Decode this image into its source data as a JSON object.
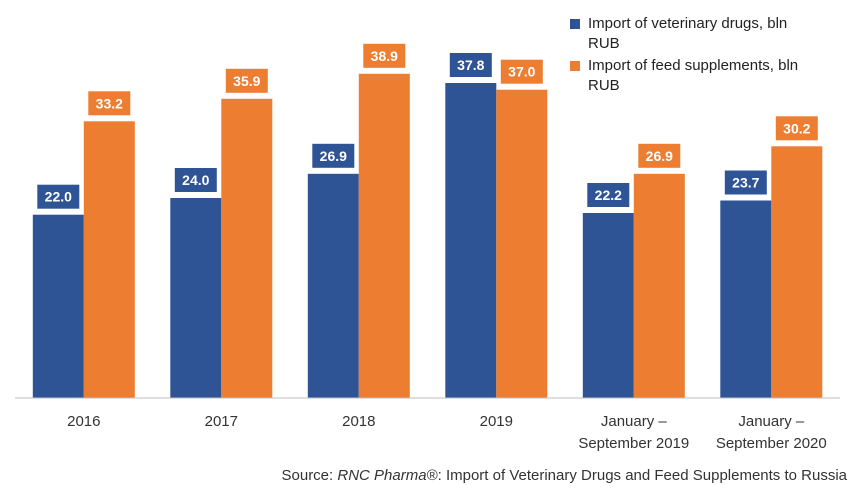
{
  "chart_data": {
    "type": "bar",
    "title": "",
    "xlabel": "",
    "ylabel": "",
    "ylim": [
      0,
      42
    ],
    "grid": false,
    "legend_position": "top-right",
    "categories": [
      [
        "2016"
      ],
      [
        "2017"
      ],
      [
        "2018"
      ],
      [
        "2019"
      ],
      [
        "January –",
        "September 2019"
      ],
      [
        "January –",
        "September 2020"
      ]
    ],
    "series": [
      {
        "name": "Import of veterinary drugs, bln RUB",
        "legend_lines": [
          "Import of veterinary drugs, bln",
          "RUB"
        ],
        "color": "#2F5496",
        "values": [
          22.0,
          24.0,
          26.9,
          37.8,
          22.2,
          23.7
        ],
        "labels": [
          "22.0",
          "24.0",
          "26.9",
          "37.8",
          "22.2",
          "23.7"
        ]
      },
      {
        "name": "Import of feed supplements, bln RUB",
        "legend_lines": [
          "Import of feed supplements, bln",
          "RUB"
        ],
        "color": "#ED7D31",
        "values": [
          33.2,
          35.9,
          38.9,
          37.0,
          26.9,
          30.2
        ],
        "labels": [
          "33.2",
          "35.9",
          "38.9",
          "37.0",
          "26.9",
          "30.2"
        ]
      }
    ]
  },
  "source": {
    "prefix": "Source: ",
    "brand": "RNC Pharma®",
    "rest": ": Import of Veterinary Drugs and Feed Supplements to Russia"
  }
}
